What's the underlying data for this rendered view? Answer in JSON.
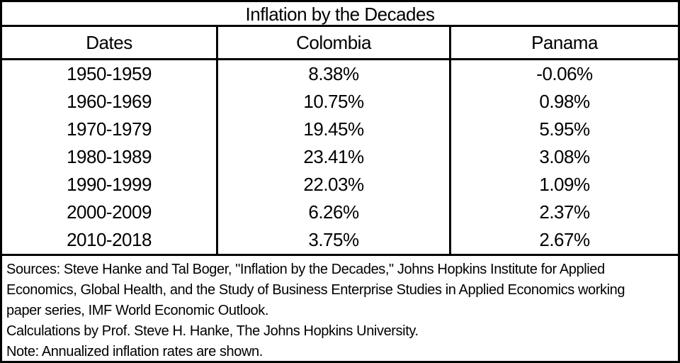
{
  "title": "Inflation by the Decades",
  "table": {
    "columns": [
      "Dates",
      "Colombia",
      "Panama"
    ],
    "rows": [
      {
        "dates": "1950-1959",
        "colombia": "8.38%",
        "panama": "-0.06%"
      },
      {
        "dates": "1960-1969",
        "colombia": "10.75%",
        "panama": "0.98%"
      },
      {
        "dates": "1970-1979",
        "colombia": "19.45%",
        "panama": "5.95%"
      },
      {
        "dates": "1980-1989",
        "colombia": "23.41%",
        "panama": "3.08%"
      },
      {
        "dates": "1990-1999",
        "colombia": "22.03%",
        "panama": "1.09%"
      },
      {
        "dates": "2000-2009",
        "colombia": "6.26%",
        "panama": "2.37%"
      },
      {
        "dates": "2010-2018",
        "colombia": "3.75%",
        "panama": "2.67%"
      }
    ]
  },
  "footer": {
    "lines": [
      "Sources: Steve Hanke and Tal Boger, \"Inflation by the Decades,\" Johns Hopkins Institute for Applied",
      "Economics, Global Health, and the Study of Business Enterprise Studies in Applied Economics working",
      "paper series, IMF World Economic Outlook.",
      "Calculations by Prof. Steve H. Hanke, The Johns Hopkins University.",
      "Note: Annualized inflation rates are shown."
    ]
  },
  "colors": {
    "text": "#000000",
    "background": "#ffffff",
    "border": "#000000"
  },
  "chart_data": {
    "type": "table",
    "title": "Inflation by the Decades",
    "categories": [
      "1950-1959",
      "1960-1969",
      "1970-1979",
      "1980-1989",
      "1990-1999",
      "2000-2009",
      "2010-2018"
    ],
    "series": [
      {
        "name": "Colombia",
        "values": [
          8.38,
          10.75,
          19.45,
          23.41,
          22.03,
          6.26,
          3.75
        ]
      },
      {
        "name": "Panama",
        "values": [
          -0.06,
          0.98,
          5.95,
          3.08,
          1.09,
          2.37,
          2.67
        ]
      }
    ],
    "value_unit": "%",
    "xlabel": "Dates",
    "ylabel": "Annualized inflation rate (%)",
    "notes": "Annualized inflation rates are shown."
  }
}
